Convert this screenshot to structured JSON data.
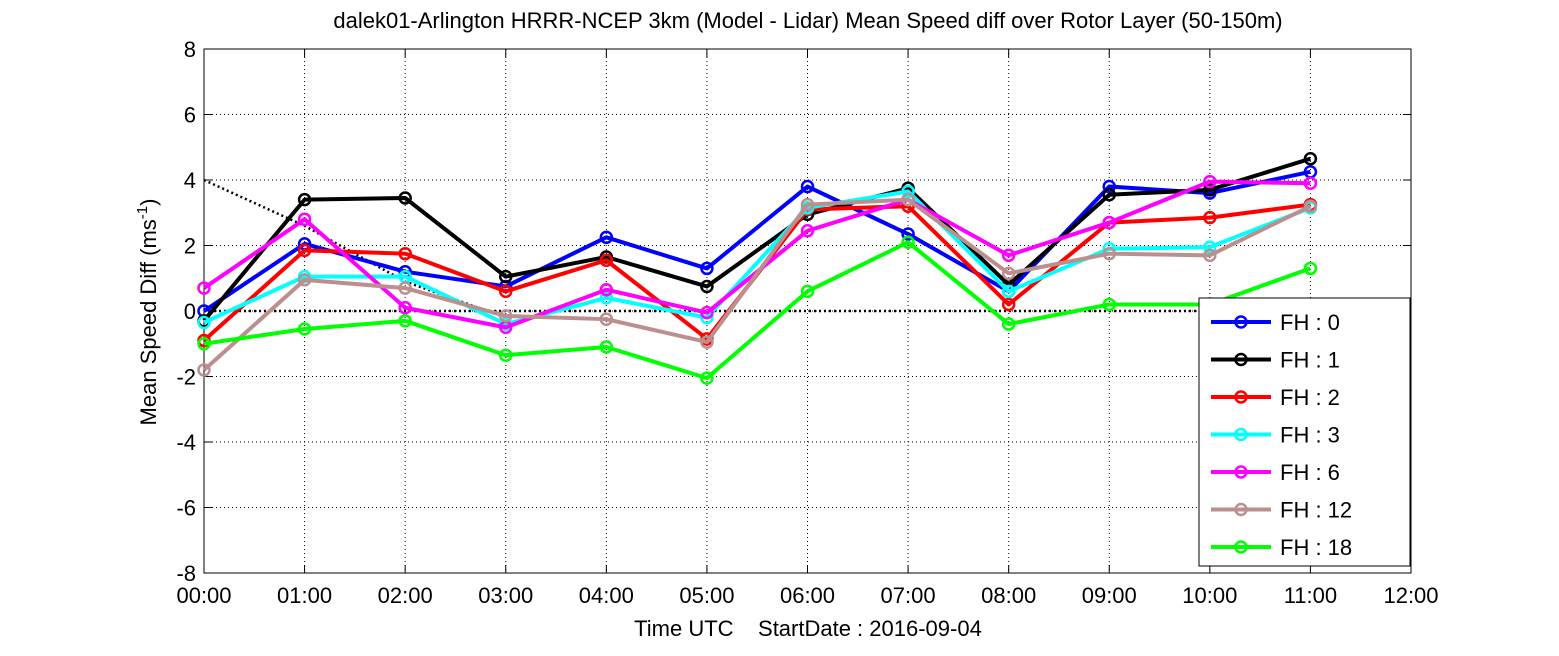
{
  "chart_data": {
    "type": "line",
    "title": "dalek01-Arlington HRRR-NCEP 3km (Model - Lidar) Mean Speed diff over Rotor Layer (50-150m)",
    "xlabel": "Time UTC    StartDate : 2016-09-04",
    "ylabel_main": "Mean Speed Diff (ms",
    "ylabel_sup": "-1",
    "ylabel_end": ")",
    "xlim": [
      0,
      12
    ],
    "ylim": [
      -8,
      8
    ],
    "x_ticks": [
      0,
      1,
      2,
      3,
      4,
      5,
      6,
      7,
      8,
      9,
      10,
      11,
      12
    ],
    "x_tick_labels": [
      "00:00",
      "01:00",
      "02:00",
      "03:00",
      "04:00",
      "05:00",
      "06:00",
      "07:00",
      "08:00",
      "09:00",
      "10:00",
      "11:00",
      "12:00"
    ],
    "y_ticks": [
      -8,
      -6,
      -4,
      -2,
      0,
      2,
      4,
      6,
      8
    ],
    "y_tick_labels": [
      "-8",
      "-6",
      "-4",
      "-2",
      "0",
      "2",
      "4",
      "6",
      "8"
    ],
    "grid": true,
    "legend_position": "bottom-right",
    "reference_lines": [
      {
        "style": "dotted",
        "x": [
          0,
          12
        ],
        "y": [
          0,
          0
        ]
      },
      {
        "style": "dotted",
        "x": [
          0,
          1,
          2,
          3
        ],
        "y": [
          4.0,
          2.6,
          0.9,
          -0.2
        ]
      }
    ],
    "x": [
      0,
      1,
      2,
      3,
      4,
      5,
      6,
      7,
      8,
      9,
      10,
      11
    ],
    "series": [
      {
        "name": "FH : 0",
        "color": "#0000ff",
        "values": [
          0.0,
          2.05,
          1.2,
          0.75,
          2.25,
          1.3,
          3.8,
          2.35,
          0.6,
          3.8,
          3.6,
          4.25
        ]
      },
      {
        "name": "FH : 1",
        "color": "#000000",
        "values": [
          -0.3,
          3.4,
          3.45,
          1.05,
          1.65,
          0.75,
          2.95,
          3.75,
          0.8,
          3.55,
          3.7,
          4.65
        ]
      },
      {
        "name": "FH : 2",
        "color": "#ff0000",
        "values": [
          -0.9,
          1.85,
          1.75,
          0.6,
          1.55,
          -0.85,
          3.1,
          3.2,
          0.2,
          2.7,
          2.85,
          3.25
        ]
      },
      {
        "name": "FH : 3",
        "color": "#00ffff",
        "values": [
          -0.35,
          1.05,
          1.05,
          -0.4,
          0.4,
          -0.2,
          3.15,
          3.65,
          0.6,
          1.9,
          1.95,
          3.15
        ]
      },
      {
        "name": "FH : 6",
        "color": "#ff00ff",
        "values": [
          0.7,
          2.8,
          0.1,
          -0.5,
          0.65,
          -0.05,
          2.45,
          3.4,
          1.7,
          2.7,
          3.95,
          3.9
        ]
      },
      {
        "name": "FH : 12",
        "color": "#bc8f8f",
        "values": [
          -1.8,
          0.95,
          0.7,
          -0.15,
          -0.25,
          -0.95,
          3.25,
          3.4,
          1.15,
          1.75,
          1.7,
          3.2
        ]
      },
      {
        "name": "FH : 18",
        "color": "#00ff00",
        "values": [
          -1.0,
          -0.55,
          -0.3,
          -1.35,
          -1.1,
          -2.05,
          0.6,
          2.1,
          -0.4,
          0.2,
          0.2,
          1.3
        ]
      }
    ]
  }
}
